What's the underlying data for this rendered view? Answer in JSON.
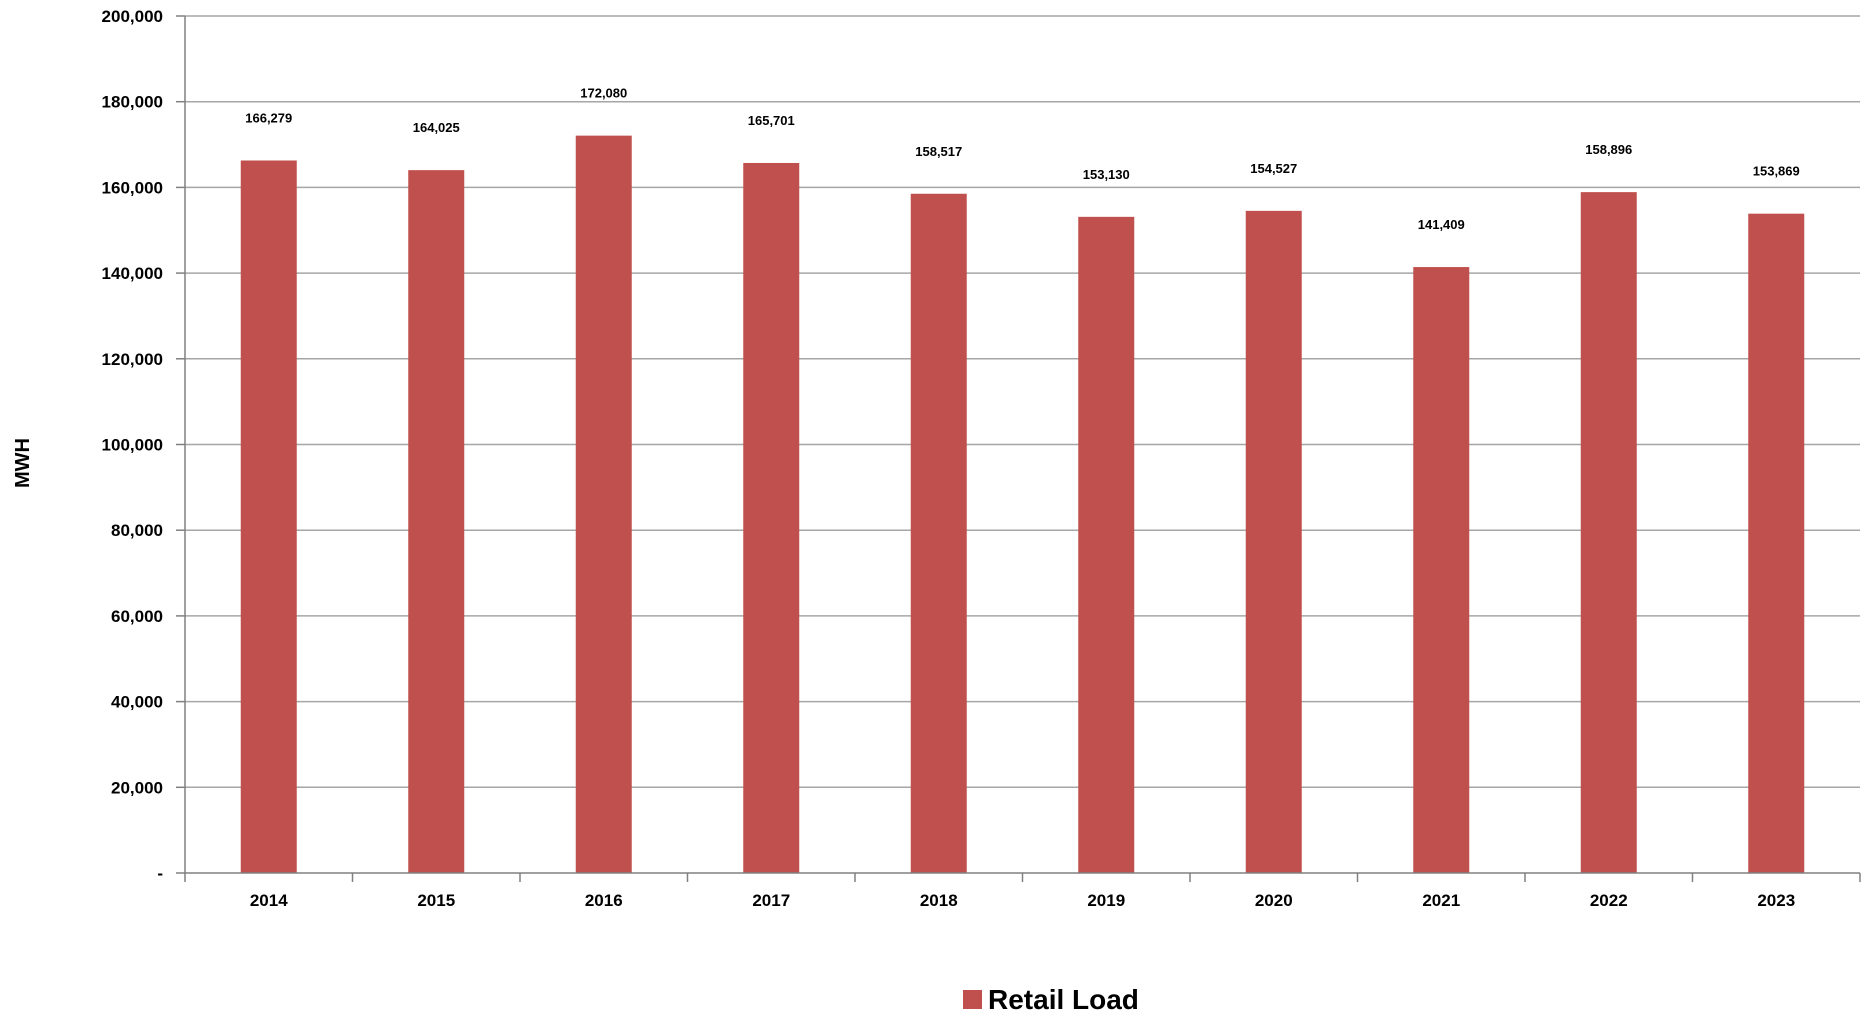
{
  "chart_data": {
    "type": "bar",
    "title": "",
    "xlabel": "",
    "ylabel": "MWH",
    "ylim": [
      0,
      200000
    ],
    "ytick_step": 20000,
    "ytick_labels": [
      "-",
      "20,000",
      "40,000",
      "60,000",
      "80,000",
      "100,000",
      "120,000",
      "140,000",
      "160,000",
      "180,000",
      "200,000"
    ],
    "categories": [
      "2014",
      "2015",
      "2016",
      "2017",
      "2018",
      "2019",
      "2020",
      "2021",
      "2022",
      "2023"
    ],
    "series": [
      {
        "name": "Retail Load",
        "color": "#c0504d",
        "values": [
          166279,
          164025,
          172080,
          165701,
          158517,
          153130,
          154527,
          141409,
          158896,
          153869
        ],
        "labels": [
          "166,279",
          "164,025",
          "172,080",
          "165,701",
          "158,517",
          "153,130",
          "154,527",
          "141,409",
          "158,896",
          "153,869"
        ]
      }
    ],
    "grid": true,
    "legend_position": "bottom",
    "colors": {
      "gridline": "#a6a6a6",
      "axis": "#808080"
    }
  }
}
